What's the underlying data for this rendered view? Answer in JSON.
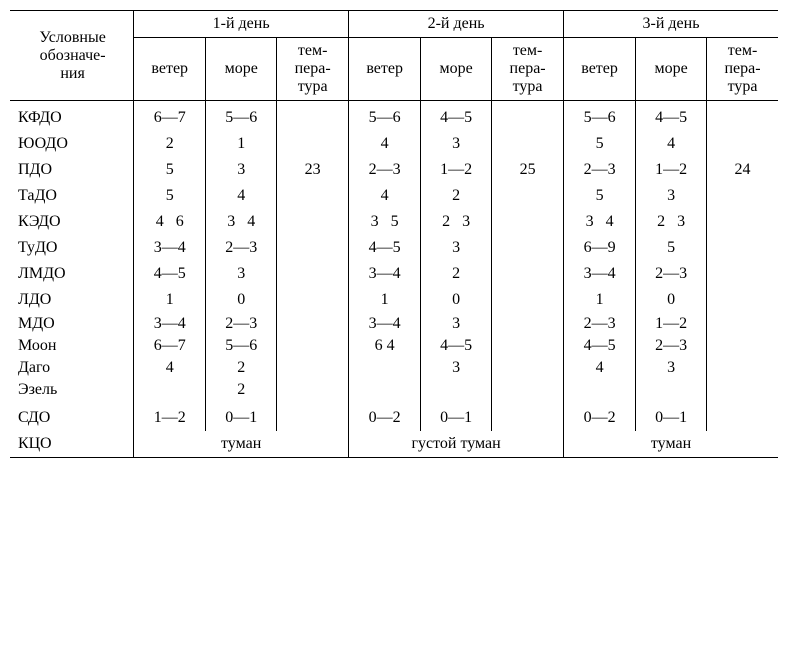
{
  "header": {
    "label_title": "Условные обозначе-ния",
    "days": [
      "1-й день",
      "2-й день",
      "3-й день"
    ],
    "sub": [
      "ветер",
      "море",
      "тем-пера-тура"
    ]
  },
  "rows": [
    {
      "label": "КФДО",
      "c": [
        "6—7",
        "5—6",
        "",
        "5—6",
        "4—5",
        "",
        "5—6",
        "4—5",
        ""
      ]
    },
    {
      "label": "ЮОДО",
      "c": [
        "2",
        "1",
        "",
        "4",
        "3",
        "",
        "5",
        "4",
        ""
      ]
    },
    {
      "label": "ПДО",
      "c": [
        "5",
        "3",
        "23",
        "2—3",
        "1—2",
        "25",
        "2—3",
        "1—2",
        "24"
      ]
    },
    {
      "label": "ТаДО",
      "c": [
        "5",
        "4",
        "",
        "4",
        "2",
        "",
        "5",
        "3",
        ""
      ]
    },
    {
      "label": "КЭДО",
      "c": [
        "4   6",
        "3   4",
        "",
        "3   5",
        "2   3",
        "",
        "3   4",
        "2   3",
        ""
      ]
    },
    {
      "label": "ТуДО",
      "c": [
        "3—4",
        "2—3",
        "",
        "4—5",
        "3",
        "",
        "6—9",
        "5",
        ""
      ]
    },
    {
      "label": "ЛМДО",
      "c": [
        "4—5",
        "3",
        "",
        "3—4",
        "2",
        "",
        "3—4",
        "2—3",
        ""
      ]
    },
    {
      "label": "ЛДО",
      "c": [
        "1",
        "0",
        "",
        "1",
        "0",
        "",
        "1",
        "0",
        ""
      ]
    },
    {
      "label": "МДО",
      "c": [
        "3—4",
        "2—3",
        "",
        "3—4",
        "3",
        "",
        "2—3",
        "1—2",
        ""
      ]
    },
    {
      "label": "Моон",
      "c": [
        "6—7",
        "5—6",
        "",
        "6 4",
        "4—5",
        "",
        "4—5",
        "2—3",
        ""
      ]
    },
    {
      "label": "Даго",
      "c": [
        "4",
        "2",
        "",
        "",
        "3",
        "",
        "4",
        "3",
        ""
      ]
    },
    {
      "label": "Эзель",
      "c": [
        "",
        "2",
        "",
        "",
        "",
        "",
        "",
        "",
        ""
      ]
    },
    {
      "label": "СДО",
      "c": [
        "1—2",
        "0—1",
        "",
        "0—2",
        "0—1",
        "",
        "0—2",
        "0—1",
        ""
      ]
    }
  ],
  "footer": {
    "label": "КЦО",
    "spans": [
      "туман",
      "густой туман",
      "туман"
    ]
  },
  "style": {
    "font_family": "Times New Roman",
    "font_size_pt": 12,
    "text_color": "#000000",
    "background_color": "#ffffff",
    "border_color": "#000000"
  }
}
